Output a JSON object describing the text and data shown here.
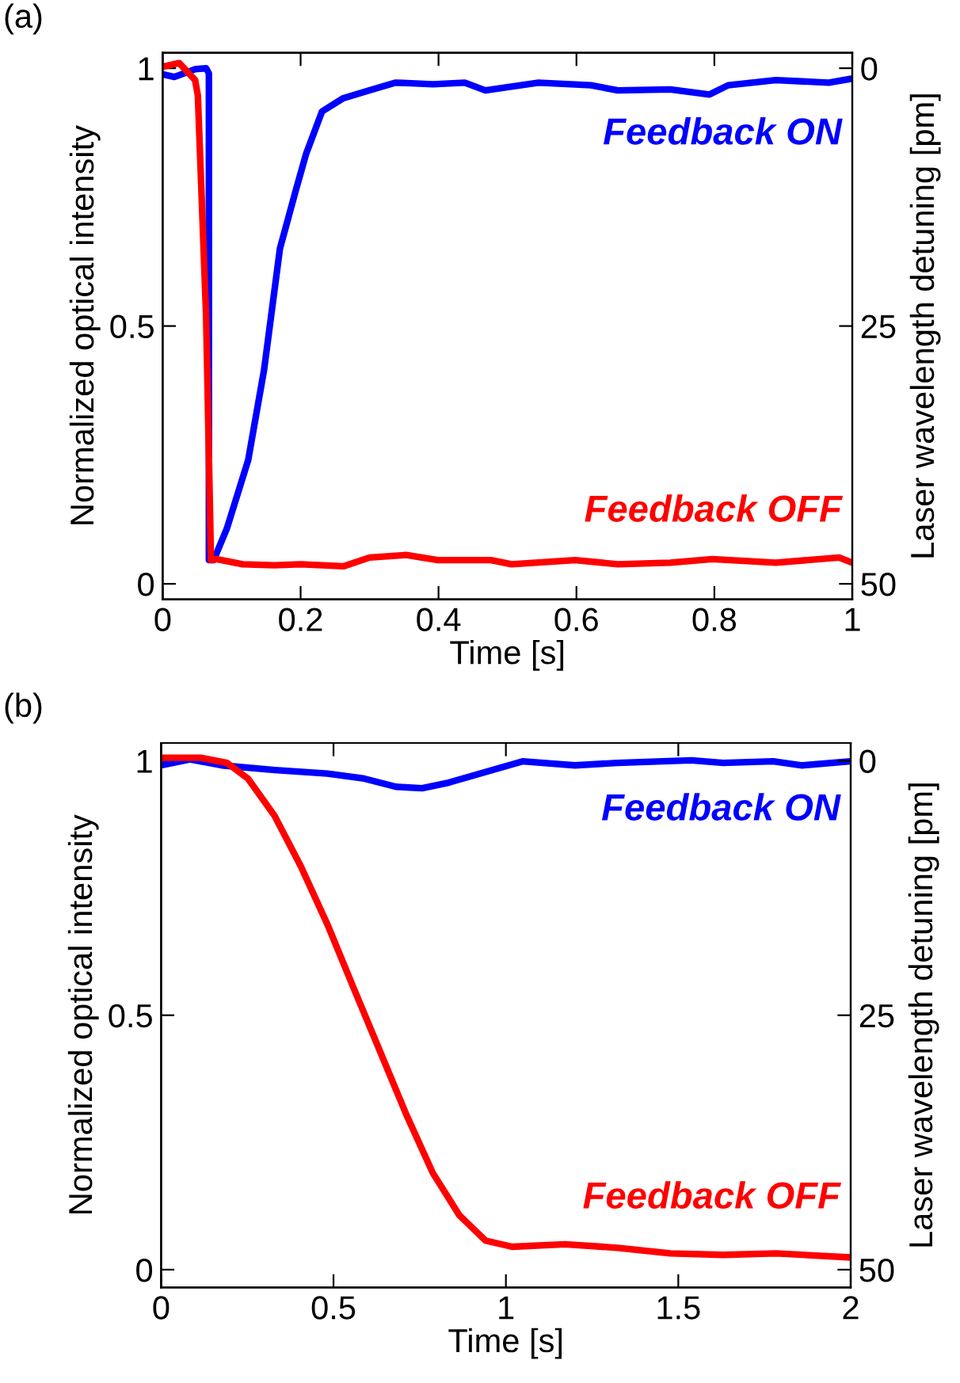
{
  "chart_data": [
    {
      "type": "line",
      "title": "(a)",
      "xlabel": "Time [s]",
      "ylabel": "Normalized optical intensity",
      "y2label": "Laser wavelength detuning [pm]",
      "xlim": [
        0,
        1
      ],
      "xticks": [
        0,
        0.2,
        0.4,
        0.6,
        0.8,
        1
      ],
      "ylim": [
        -0.03,
        1.03
      ],
      "yticks": [
        0,
        0.5,
        1
      ],
      "y2lim": [
        51.5,
        -1.5
      ],
      "y2ticks": [
        0,
        25,
        50
      ],
      "grid": false,
      "annotations": [
        "Feedback ON",
        "Feedback OFF"
      ],
      "series": [
        {
          "color": "#0000ff",
          "x": [
            0,
            0.017,
            0.047,
            0.063,
            0.067,
            0.067,
            0.074,
            0.093,
            0.124,
            0.147,
            0.17,
            0.193,
            0.208,
            0.231,
            0.262,
            0.3,
            0.338,
            0.392,
            0.438,
            0.468,
            0.545,
            0.621,
            0.66,
            0.736,
            0.793,
            0.82,
            0.889,
            0.966,
            1
          ],
          "values": [
            0.988,
            0.983,
            0.998,
            1.0,
            0.99,
            0.046,
            0.046,
            0.107,
            0.24,
            0.415,
            0.65,
            0.763,
            0.834,
            0.916,
            0.942,
            0.957,
            0.972,
            0.969,
            0.972,
            0.957,
            0.972,
            0.967,
            0.957,
            0.959,
            0.949,
            0.967,
            0.977,
            0.972,
            0.98
          ]
        },
        {
          "color": "#ff0000",
          "x": [
            0,
            0.024,
            0.047,
            0.051,
            0.063,
            0.07,
            0.078,
            0.116,
            0.162,
            0.2,
            0.262,
            0.3,
            0.353,
            0.399,
            0.476,
            0.506,
            0.598,
            0.66,
            0.736,
            0.797,
            0.889,
            0.981,
            1
          ],
          "values": [
            1.003,
            1.01,
            0.977,
            0.947,
            0.517,
            0.046,
            0.048,
            0.038,
            0.036,
            0.038,
            0.034,
            0.051,
            0.056,
            0.046,
            0.046,
            0.038,
            0.046,
            0.038,
            0.041,
            0.048,
            0.041,
            0.051,
            0.041
          ]
        }
      ]
    },
    {
      "type": "line",
      "title": "(b)",
      "xlabel": "Time [s]",
      "ylabel": "Normalized optical intensity",
      "y2label": "Laser wavelength detuning [pm]",
      "xlim": [
        0,
        2
      ],
      "xticks": [
        0,
        0.5,
        1,
        1.5,
        2
      ],
      "ylim": [
        -0.035,
        1.035
      ],
      "yticks": [
        0,
        0.5,
        1
      ],
      "y2lim": [
        51.75,
        -1.75
      ],
      "y2ticks": [
        0,
        25,
        50
      ],
      "grid": false,
      "annotations": [
        "Feedback ON",
        "Feedback OFF"
      ],
      "series": [
        {
          "color": "#0000ff",
          "x": [
            0,
            0.084,
            0.176,
            0.329,
            0.482,
            0.589,
            0.681,
            0.757,
            0.834,
            0.926,
            1.048,
            1.2,
            1.324,
            1.538,
            1.63,
            1.775,
            1.859,
            2
          ],
          "values": [
            0.991,
            1.003,
            0.991,
            0.982,
            0.975,
            0.965,
            0.949,
            0.946,
            0.957,
            0.975,
            0.999,
            0.991,
            0.996,
            1.001,
            0.996,
            0.999,
            0.991,
            0.999
          ]
        },
        {
          "color": "#ff0000",
          "x": [
            0,
            0.115,
            0.191,
            0.252,
            0.329,
            0.405,
            0.482,
            0.558,
            0.635,
            0.711,
            0.788,
            0.865,
            0.941,
            1.018,
            1.171,
            1.324,
            1.477,
            1.63,
            1.783,
            2
          ],
          "values": [
            1.006,
            1.006,
            0.996,
            0.965,
            0.892,
            0.793,
            0.679,
            0.554,
            0.429,
            0.305,
            0.19,
            0.107,
            0.057,
            0.045,
            0.05,
            0.043,
            0.032,
            0.029,
            0.032,
            0.024
          ]
        }
      ]
    }
  ]
}
